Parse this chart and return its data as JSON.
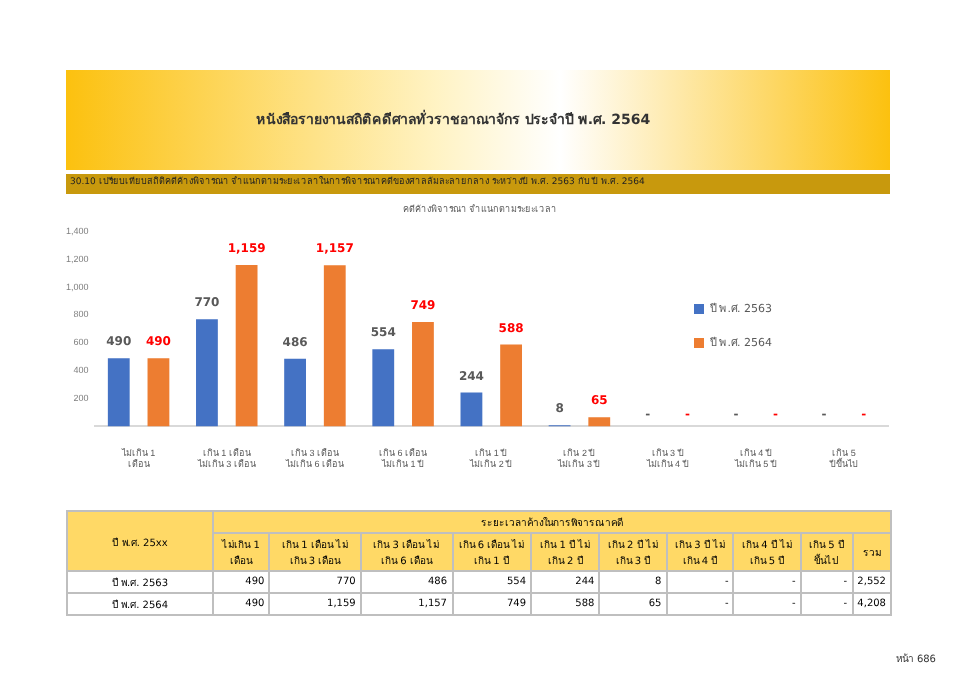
{
  "chart_data": {
    "type": "bar",
    "title": "หนังสือรายงานสถิติคดีศาลทั่วราชอาณาจักร ประจำปี พ.ศ. 2564",
    "subtitle": "คดีค้างพิจารณา จำแนกตามระยะเวลา",
    "categories": [
      "ไม่เกิน 1 เดือน",
      "เกิน 1 เดือน ไม่เกิน 3 เดือน",
      "เกิน 3 เดือน ไม่เกิน 6 เดือน",
      "เกิน 6 เดือน ไม่เกิน 1 ปี",
      "เกิน 1 ปี ไม่เกิน 2 ปี",
      "เกิน 2 ปี ไม่เกิน 3 ปี",
      "เกิน 3 ปี ไม่เกิน 4 ปี",
      "เกิน 4 ปี ไม่เกิน 5 ปี",
      "เกิน 5 ปีขึ้นไป"
    ],
    "series": [
      {
        "name": "ปี พ.ศ. 2563",
        "color": "#4472c4",
        "values": [
          490,
          770,
          486,
          554,
          244,
          8,
          null,
          null,
          null
        ],
        "value_labels": [
          "490",
          "770",
          "486",
          "554",
          "244",
          "8",
          "-",
          "-",
          "-"
        ]
      },
      {
        "name": "ปี พ.ศ. 2564",
        "color": "#ed7d31",
        "values": [
          490,
          1159,
          1157,
          749,
          588,
          65,
          null,
          null,
          null
        ],
        "value_labels": [
          "490",
          "1,159",
          "1,157",
          "749",
          "588",
          "65",
          "-",
          "-",
          "-"
        ]
      }
    ],
    "ylim": [
      0,
      1400
    ],
    "yticks": [
      {
        "value": 0,
        "label": null
      },
      {
        "value": 200,
        "label": "200"
      },
      {
        "value": 400,
        "label": "400"
      },
      {
        "value": 600,
        "label": "600"
      },
      {
        "value": 800,
        "label": "800"
      },
      {
        "value": 1000,
        "label": "1,000"
      },
      {
        "value": 1200,
        "label": "1,200"
      },
      {
        "value": 1400,
        "label": "1,400"
      }
    ],
    "grid": false,
    "legend": "right",
    "annotations": [
      "30.10 เปรียบเทียบสถิติคดีค้างพิจารณา จำแนกตามระยะเวลาในการพิจารณาคดีของศาลล้มละลายกลาง ระหว่างปี พ.ศ. 2563 กับ ปี พ.ศ. 2564",
      "ปี พ.ศ. 25xx",
      "ระยะเวลาค้างในการพิจารณาคดี",
      "รวม",
      "2,552",
      "4,208",
      "หน้า 686"
    ]
  }
}
